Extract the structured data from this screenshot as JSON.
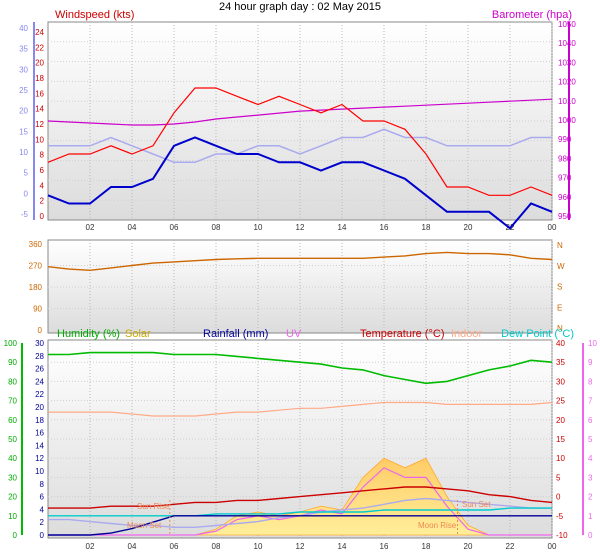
{
  "title": "24 hour graph day : 02 May 2015",
  "colors": {
    "wind": "#ff0000",
    "gust": "#ff0000",
    "avg_wind": "#0000cc",
    "baro": "#cc00cc",
    "temp_outdoor": "#cc0000",
    "dir": "#cc6600",
    "humidity": "#00bb00",
    "solar": "#ddaa00",
    "rain": "#000099",
    "uv": "#ee66ee",
    "temperature": "#cc0000",
    "indoor": "#ffaa88",
    "dewpoint": "#00cccc",
    "blue_axis": "#8888ee"
  },
  "panel1": {
    "left_label": "Windspeed (kts)",
    "right_label": "Barometer (hpa)",
    "left_outer_ticks": [
      "40",
      "35",
      "30",
      "25",
      "20",
      "15",
      "10",
      "5",
      "0",
      "-5"
    ],
    "left_inner_ticks": [
      "24",
      "22",
      "20",
      "18",
      "16",
      "14",
      "12",
      "10",
      "8",
      "6",
      "4",
      "2",
      "0"
    ],
    "right_ticks": [
      "1050",
      "1040",
      "1030",
      "1020",
      "1010",
      "1000",
      "990",
      "980",
      "970",
      "960",
      "950"
    ]
  },
  "panel2": {
    "left_ticks": [
      "360",
      "270",
      "180",
      "90",
      "0"
    ],
    "right_labels": [
      "N",
      "W",
      "S",
      "E",
      "N"
    ]
  },
  "panel3": {
    "legend": {
      "humidity": "Humidity (%)",
      "solar": "Solar",
      "rainfall": "Rainfall (mm)",
      "uv": "UV",
      "temperature": "Temperature (°C)",
      "indoor": "Indoor",
      "dewpoint": "Dew Point (°C)"
    },
    "far_left_ticks": [
      "100",
      "90",
      "80",
      "70",
      "60",
      "50",
      "40",
      "30",
      "20",
      "10",
      "0"
    ],
    "inner_left_ticks": [
      "30",
      "28",
      "26",
      "24",
      "22",
      "20",
      "18",
      "16",
      "14",
      "12",
      "10",
      "8",
      "6",
      "4",
      "2",
      "0"
    ],
    "right_ticks": [
      "40",
      "35",
      "30",
      "25",
      "20",
      "15",
      "10",
      "5",
      "0",
      "-5",
      "-10"
    ],
    "far_right_ticks": [
      "10",
      "9",
      "8",
      "7",
      "6",
      "5",
      "4",
      "3",
      "2",
      "1",
      "0"
    ],
    "annotations": {
      "sun_rise": "Sun Rise",
      "moon_set": "Moon Set",
      "moon_rise": "Moon Rise",
      "sun_set": "Sun Set"
    }
  },
  "x_tick_labels": [
    "02",
    "04",
    "06",
    "08",
    "10",
    "12",
    "14",
    "16",
    "18",
    "20",
    "22",
    "00"
  ],
  "chart_data": [
    {
      "type": "line",
      "title": "24 hour graph day : 02 May 2015",
      "x": [
        0,
        1,
        2,
        3,
        4,
        5,
        6,
        7,
        8,
        9,
        10,
        11,
        12,
        13,
        14,
        15,
        16,
        17,
        18,
        19,
        20,
        21,
        22,
        23,
        24
      ],
      "xlim": [
        0,
        24
      ],
      "series": [
        {
          "name": "Windspeed (kts)",
          "axis": "kts",
          "values": [
            7,
            8,
            8,
            9,
            8,
            9,
            13,
            16,
            16,
            15,
            14,
            15,
            14,
            13,
            14,
            12,
            12,
            11,
            8,
            4,
            4,
            3,
            3,
            4,
            3
          ]
        },
        {
          "name": "Windspeed (kts)",
          "axis": "kts",
          "values": [
            3,
            2,
            2,
            4,
            4,
            5,
            9,
            10,
            9,
            8,
            8,
            7,
            7,
            6,
            7,
            7,
            6,
            5,
            3,
            1,
            1,
            1,
            -1,
            2,
            1
          ]
        },
        {
          "name": "Barometer (hpa)",
          "axis": "hpa",
          "values": [
            1000,
            999.5,
            999,
            998.5,
            998,
            998,
            998.5,
            999.5,
            1001,
            1002,
            1003,
            1004,
            1005,
            1005.5,
            1006,
            1006.5,
            1007,
            1007.5,
            1008,
            1008.5,
            1009,
            1009.5,
            1010,
            1010.5,
            1011
          ]
        },
        {
          "axis": "kts",
          "values": [
            9,
            9,
            9,
            10,
            9,
            8,
            7,
            7,
            8,
            8,
            9,
            9,
            8,
            9,
            10,
            10,
            11,
            10,
            10,
            9,
            9,
            9,
            9,
            10,
            10
          ]
        }
      ],
      "ylim_kts": [
        0,
        24
      ],
      "ylim_hpa": [
        950,
        1050
      ]
    },
    {
      "type": "line",
      "x": [
        0,
        1,
        2,
        3,
        4,
        5,
        6,
        7,
        8,
        9,
        10,
        11,
        12,
        13,
        14,
        15,
        16,
        17,
        18,
        19,
        20,
        21,
        22,
        23,
        24
      ],
      "series": [
        {
          "axis": "deg",
          "values": [
            265,
            255,
            250,
            260,
            270,
            280,
            285,
            290,
            295,
            298,
            300,
            300,
            300,
            300,
            300,
            300,
            305,
            310,
            320,
            325,
            320,
            320,
            315,
            300,
            295
          ]
        }
      ],
      "ylim": [
        0,
        360
      ]
    },
    {
      "type": "line",
      "x": [
        0,
        1,
        2,
        3,
        4,
        5,
        6,
        7,
        8,
        9,
        10,
        11,
        12,
        13,
        14,
        15,
        16,
        17,
        18,
        19,
        20,
        21,
        22,
        23,
        24
      ],
      "series": [
        {
          "name": "Humidity (%)",
          "axis": "pct",
          "values": [
            94,
            94,
            95,
            95,
            95,
            95,
            94,
            94,
            94,
            93,
            92,
            91,
            90,
            89,
            87,
            86,
            83,
            81,
            79,
            80,
            83,
            86,
            88,
            91,
            90
          ]
        },
        {
          "name": "Temperature (°C)",
          "axis": "degC",
          "values": [
            -3,
            -3,
            -3,
            -2.5,
            -2.5,
            -2.5,
            -2,
            -1.5,
            -1.5,
            -1,
            -1,
            -0.5,
            0,
            0.5,
            1,
            1.5,
            2,
            2.5,
            2.5,
            2,
            1.5,
            0.5,
            0,
            -1,
            -1.5
          ]
        },
        {
          "name": "Indoor",
          "axis": "degC",
          "values": [
            22,
            22,
            22,
            22,
            21.5,
            21,
            21,
            21,
            21.5,
            22,
            22,
            22.5,
            23,
            23,
            23.5,
            24,
            24.5,
            24.5,
            24.5,
            24,
            24,
            24,
            24,
            24,
            24.5
          ]
        },
        {
          "name": "Dew Point (°C)",
          "axis": "degC",
          "values": [
            -5,
            -5,
            -5,
            -5,
            -5,
            -5,
            -5,
            -5,
            -4.5,
            -4.5,
            -4.5,
            -4.5,
            -4,
            -4,
            -4,
            -4,
            -3.5,
            -3.5,
            -3.5,
            -3.5,
            -3.5,
            -3.5,
            -3,
            -3,
            -3
          ]
        },
        {
          "axis": "degC",
          "values": [
            -6,
            -6,
            -6.5,
            -7,
            -7.5,
            -7.5,
            -8,
            -8,
            -7.5,
            -7,
            -6.5,
            -5.5,
            -5,
            -4,
            -3.5,
            -3,
            -2,
            -1,
            -0.5,
            -1,
            -1.5,
            -2,
            -2.5,
            -3,
            -3
          ]
        },
        {
          "name": "Rainfall (mm)",
          "axis": "mm",
          "values": [
            0,
            0,
            0,
            0.3,
            1,
            2,
            3,
            3,
            3,
            3,
            3,
            3,
            3,
            3,
            3,
            3,
            3,
            3,
            3,
            3,
            3,
            3,
            3,
            3,
            3
          ]
        },
        {
          "name": "Solar",
          "axis": "uv",
          "values": [
            0,
            0,
            0,
            0,
            0,
            0,
            0,
            0,
            0.3,
            1,
            1.2,
            1,
            1.2,
            1.5,
            1.3,
            3,
            4,
            3.5,
            4,
            2,
            0.5,
            0,
            0,
            0,
            0
          ]
        },
        {
          "name": "UV",
          "axis": "uv",
          "values": [
            0,
            0,
            0,
            0,
            0,
            0,
            0,
            0,
            0.2,
            0.8,
            1,
            0.8,
            1,
            1.3,
            1.1,
            2.5,
            3.5,
            3,
            3,
            1.5,
            0.3,
            0,
            0,
            0,
            0
          ]
        }
      ],
      "ylim_pct": [
        0,
        100
      ],
      "ylim_degC": [
        -10,
        40
      ],
      "ylim_mm": [
        0,
        30
      ],
      "ylim_uv": [
        0,
        10
      ]
    }
  ]
}
